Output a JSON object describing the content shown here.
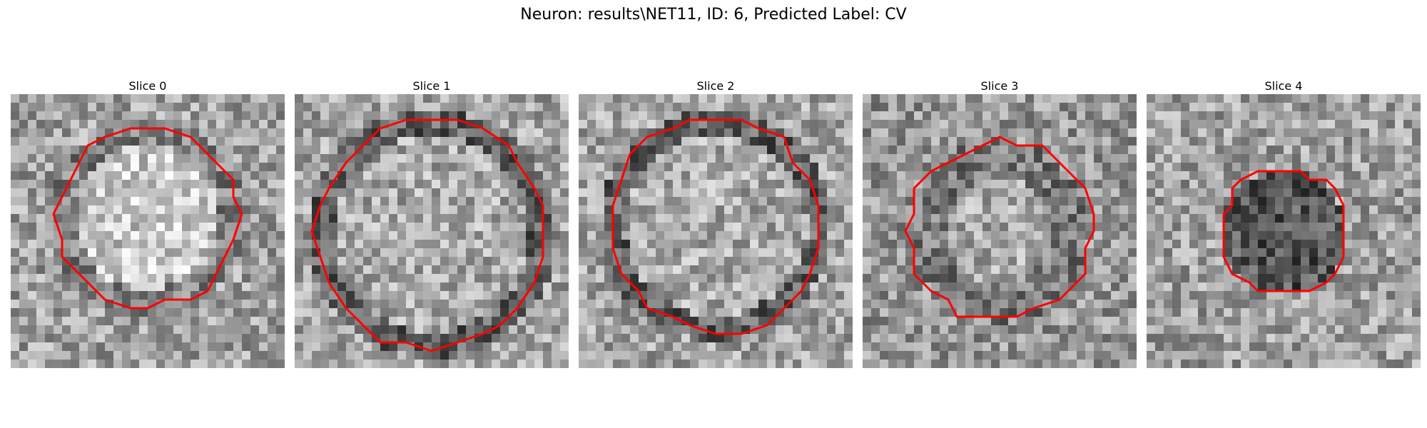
{
  "figure": {
    "title": "Neuron: results\\NET11, ID: 6, Predicted Label: CV",
    "outline_color": "#ff0000",
    "colormap": "grayscale"
  },
  "panels": [
    {
      "title": "Slice 0",
      "center": [
        0.5,
        0.45
      ],
      "radius": 0.33,
      "interior": "bright"
    },
    {
      "title": "Slice 1",
      "center": [
        0.5,
        0.51
      ],
      "radius": 0.42,
      "interior": "mid"
    },
    {
      "title": "Slice 2",
      "center": [
        0.5,
        0.48
      ],
      "radius": 0.39,
      "interior": "mid"
    },
    {
      "title": "Slice 3",
      "center": [
        0.5,
        0.5
      ],
      "radius": 0.33,
      "interior": "dark-ring"
    },
    {
      "title": "Slice 4",
      "center": [
        0.5,
        0.5
      ],
      "radius": 0.23,
      "interior": "dark"
    }
  ]
}
